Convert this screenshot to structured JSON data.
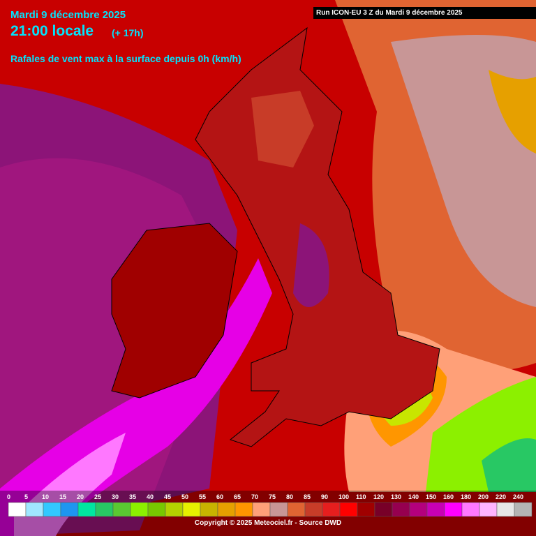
{
  "header": {
    "date": "Mardi 9 décembre 2025",
    "time": "21:00 locale",
    "offset": "(+ 17h)",
    "subtitle": "Rafales de vent max à la surface depuis 0h (km/h)"
  },
  "run": "Run ICON-EU 3 Z du Mardi 9 décembre 2025",
  "legend": {
    "labels": [
      0,
      5,
      10,
      15,
      20,
      25,
      30,
      35,
      40,
      45,
      50,
      55,
      60,
      65,
      70,
      75,
      80,
      85,
      90,
      100,
      110,
      120,
      130,
      140,
      150,
      160,
      180,
      200,
      220,
      240
    ],
    "colors": [
      "#ffffff",
      "#a0e6ff",
      "#32c8ff",
      "#1e96f0",
      "#00e6a0",
      "#28c864",
      "#5ac832",
      "#8cf000",
      "#78c800",
      "#b4d200",
      "#e6f000",
      "#c8b400",
      "#e6a000",
      "#ff9600",
      "#ffa078",
      "#c89696",
      "#e06432",
      "#c83c28",
      "#e61e1e",
      "#ff0000",
      "#a00000",
      "#780028",
      "#960050",
      "#b4007d",
      "#c800b4",
      "#ff00ff",
      "#ff78ff",
      "#ffb4ff",
      "#e6e6e6",
      "#b4b4b4"
    ]
  },
  "footer": "Copyright © 2025 Meteociel.fr - Source DWD"
}
